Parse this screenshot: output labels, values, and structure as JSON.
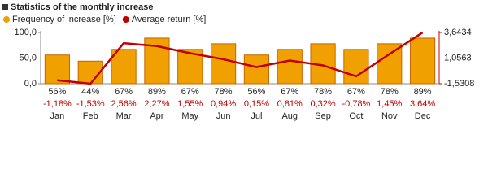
{
  "chart_data": {
    "type": "bar",
    "title": "Statistics of the monthly increase",
    "categories": [
      "Jan",
      "Feb",
      "Mar",
      "Apr",
      "May",
      "Jun",
      "Jul",
      "Aug",
      "Sep",
      "Oct",
      "Nov",
      "Dec"
    ],
    "series": [
      {
        "name": "Frequency of increase [%]",
        "type": "bar",
        "color": "#f0a000",
        "border": "#c86400",
        "values": [
          56,
          44,
          67,
          89,
          67,
          78,
          56,
          67,
          78,
          67,
          78,
          89
        ],
        "value_labels": [
          "56%",
          "44%",
          "67%",
          "89%",
          "67%",
          "78%",
          "56%",
          "67%",
          "78%",
          "67%",
          "78%",
          "89%"
        ]
      },
      {
        "name": "Average return [%]",
        "type": "line",
        "axis": "y2",
        "color": "#c00000",
        "values": [
          -1.18,
          -1.53,
          2.56,
          2.27,
          1.55,
          0.94,
          0.15,
          0.81,
          0.32,
          -0.78,
          1.45,
          3.64
        ],
        "value_labels": [
          "-1,18%",
          "-1,53%",
          "2,56%",
          "2,27%",
          "1,55%",
          "0,94%",
          "0,15%",
          "0,81%",
          "0,32%",
          "-0,78%",
          "1,45%",
          "3,64%"
        ]
      }
    ],
    "ylim": [
      0,
      100
    ],
    "yticks": [
      {
        "value": 0,
        "label": "0,0"
      },
      {
        "value": 50,
        "label": "50,0"
      },
      {
        "value": 100,
        "label": "100,0"
      }
    ],
    "y2lim": [
      -1.5308,
      3.6434
    ],
    "y2ticks": [
      {
        "value": -1.5308,
        "label": "-1,5308"
      },
      {
        "value": 1.0563,
        "label": "1,0563"
      },
      {
        "value": 3.6434,
        "label": "3,6434"
      }
    ],
    "grid": false
  }
}
